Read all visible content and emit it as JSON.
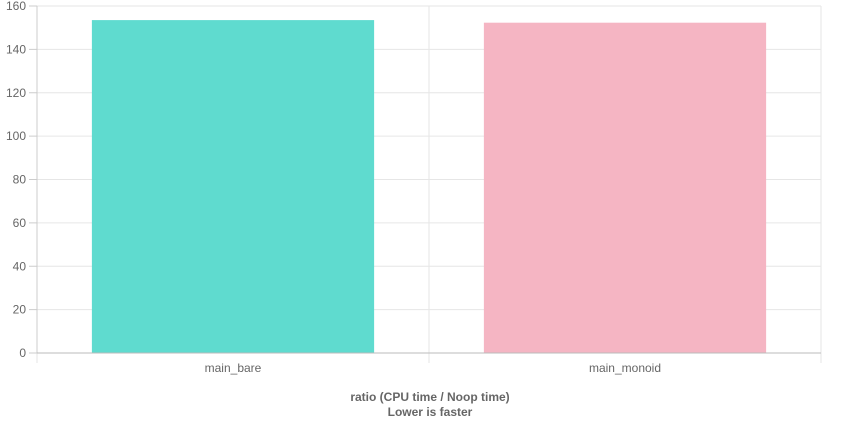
{
  "chart_data": {
    "type": "bar",
    "categories": [
      "main_bare",
      "main_monoid"
    ],
    "values": [
      153.5,
      152.3
    ],
    "colors": [
      "#5fdbcf",
      "#f5b5c3"
    ],
    "ylim": [
      0,
      160
    ],
    "yticks": [
      "0",
      "20",
      "40",
      "60",
      "80",
      "100",
      "120",
      "140",
      "160"
    ],
    "xlabel_line1": "ratio (CPU time / Noop time)",
    "xlabel_line2": "Lower is faster",
    "grid": true,
    "legend": "none"
  }
}
